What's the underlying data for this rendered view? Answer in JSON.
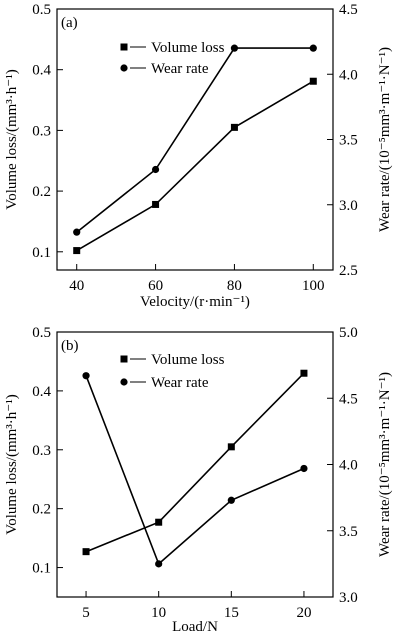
{
  "chart_data": [
    {
      "type": "line",
      "panel_label": "(a)",
      "xlabel": "Velocity/(r·min⁻¹)",
      "ylabel": "Volume loss/(mm³·h⁻¹)",
      "y2label": "Wear rate/(10⁻⁵mm³·m⁻¹·N⁻¹)",
      "x": [
        40,
        60,
        80,
        100
      ],
      "xticks": [
        "40",
        "60",
        "80",
        "100"
      ],
      "xlim": [
        35,
        105
      ],
      "ylim": [
        0.07,
        0.5
      ],
      "yticks": [
        "0.1",
        "0.2",
        "0.3",
        "0.4",
        "0.5"
      ],
      "y2lim": [
        2.5,
        4.5
      ],
      "y2ticks": [
        "2.5",
        "3.0",
        "3.5",
        "4.0",
        "4.5"
      ],
      "legend": "top-left",
      "series": [
        {
          "name": "Volume loss",
          "axis": "left",
          "marker": "square",
          "values": [
            0.102,
            0.178,
            0.305,
            0.381
          ]
        },
        {
          "name": "Wear rate",
          "axis": "right",
          "marker": "circle",
          "values": [
            2.79,
            3.27,
            4.2,
            4.2
          ]
        }
      ]
    },
    {
      "type": "line",
      "panel_label": "(b)",
      "xlabel": "Load/N",
      "ylabel": "Volume loss/(mm³·h⁻¹)",
      "y2label": "Wear rate/(10⁻⁵mm³·m⁻¹·N⁻¹)",
      "x": [
        5,
        10,
        15,
        20
      ],
      "xticks": [
        "5",
        "10",
        "15",
        "20"
      ],
      "xlim": [
        3,
        22
      ],
      "ylim": [
        0.05,
        0.5
      ],
      "yticks": [
        "0.1",
        "0.2",
        "0.3",
        "0.4",
        "0.5"
      ],
      "y2lim": [
        3.0,
        5.0
      ],
      "y2ticks": [
        "3.0",
        "3.5",
        "4.0",
        "4.5",
        "5.0"
      ],
      "legend": "top-left",
      "series": [
        {
          "name": "Volume loss",
          "axis": "left",
          "marker": "square",
          "values": [
            0.127,
            0.177,
            0.305,
            0.43
          ]
        },
        {
          "name": "Wear rate",
          "axis": "right",
          "marker": "circle",
          "values": [
            4.67,
            3.25,
            3.73,
            3.97
          ]
        }
      ]
    }
  ]
}
